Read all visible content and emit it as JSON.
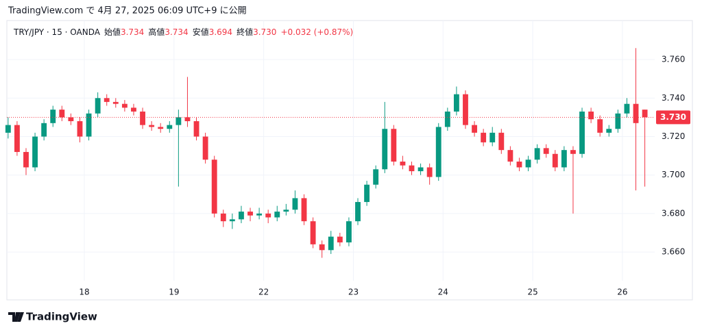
{
  "header": "TradingView.com で 4月 27, 2025 06:09 UTC+9 に公開",
  "logo": "TradingView",
  "chart_data": {
    "type": "candlestick",
    "symbol": "TRY/JPY · 15 · OANDA",
    "legend_items": [
      {
        "label": "始値",
        "value": "3.734"
      },
      {
        "label": "高値",
        "value": "3.734"
      },
      {
        "label": "安値",
        "value": "3.694"
      },
      {
        "label": "終値",
        "value": "3.730"
      }
    ],
    "change": "+0.032 (+0.87%)",
    "up_color": "#089981",
    "down_color": "#f23645",
    "grid": true,
    "xlim": [
      0.136,
      7.36
    ],
    "xticks": [
      {
        "value": 1,
        "label": "18"
      },
      {
        "value": 2,
        "label": "19"
      },
      {
        "value": 3,
        "label": "22"
      },
      {
        "value": 4,
        "label": "23"
      },
      {
        "value": 5,
        "label": "24"
      },
      {
        "value": 6,
        "label": "25"
      },
      {
        "value": 7,
        "label": "26"
      }
    ],
    "ylim": [
      3.6451,
      3.7803
    ],
    "yticks": [
      {
        "value": 3.66,
        "label": "3.660"
      },
      {
        "value": 3.68,
        "label": "3.680"
      },
      {
        "value": 3.7,
        "label": "3.700"
      },
      {
        "value": 3.72,
        "label": "3.720"
      },
      {
        "value": 3.74,
        "label": "3.740"
      },
      {
        "value": 3.76,
        "label": "3.760"
      }
    ],
    "last_price": {
      "value": 3.73,
      "label": "3.730"
    },
    "x": [
      0.15,
      0.25,
      0.35,
      0.45,
      0.55,
      0.65,
      0.75,
      0.85,
      0.95,
      1.05,
      1.15,
      1.25,
      1.35,
      1.45,
      1.55,
      1.65,
      1.75,
      1.85,
      1.95,
      2.05,
      2.15,
      2.25,
      2.35,
      2.45,
      2.55,
      2.65,
      2.75,
      2.85,
      2.95,
      3.05,
      3.15,
      3.25,
      3.35,
      3.45,
      3.55,
      3.65,
      3.75,
      3.85,
      3.95,
      4.05,
      4.15,
      4.25,
      4.35,
      4.45,
      4.55,
      4.65,
      4.75,
      4.85,
      4.95,
      5.05,
      5.15,
      5.25,
      5.35,
      5.45,
      5.55,
      5.65,
      5.75,
      5.85,
      5.95,
      6.05,
      6.15,
      6.25,
      6.35,
      6.45,
      6.55,
      6.65,
      6.75,
      6.85,
      6.95,
      7.05,
      7.15,
      7.25
    ],
    "open": [
      3.722,
      3.726,
      3.712,
      3.704,
      3.72,
      3.727,
      3.734,
      3.73,
      3.728,
      3.72,
      3.732,
      3.74,
      3.738,
      3.737,
      3.735,
      3.733,
      3.726,
      3.725,
      3.724,
      3.726,
      3.73,
      3.728,
      3.72,
      3.708,
      3.68,
      3.676,
      3.677,
      3.681,
      3.679,
      3.68,
      3.678,
      3.681,
      3.682,
      3.688,
      3.676,
      3.664,
      3.661,
      3.668,
      3.665,
      3.676,
      3.686,
      3.695,
      3.703,
      3.724,
      3.707,
      3.705,
      3.702,
      3.704,
      3.699,
      3.725,
      3.733,
      3.742,
      3.726,
      3.722,
      3.717,
      3.722,
      3.713,
      3.707,
      3.704,
      3.708,
      3.714,
      3.711,
      3.704,
      3.713,
      3.711,
      3.733,
      3.729,
      3.722,
      3.724,
      3.732,
      3.737,
      3.734
    ],
    "high": [
      3.73,
      3.728,
      3.714,
      3.722,
      3.729,
      3.736,
      3.736,
      3.732,
      3.73,
      3.734,
      3.743,
      3.742,
      3.74,
      3.739,
      3.737,
      3.735,
      3.728,
      3.727,
      3.728,
      3.734,
      3.751,
      3.73,
      3.722,
      3.71,
      3.682,
      3.68,
      3.684,
      3.683,
      3.683,
      3.682,
      3.684,
      3.685,
      3.692,
      3.69,
      3.678,
      3.666,
      3.671,
      3.67,
      3.678,
      3.688,
      3.697,
      3.705,
      3.738,
      3.726,
      3.71,
      3.707,
      3.706,
      3.706,
      3.727,
      3.735,
      3.746,
      3.744,
      3.728,
      3.724,
      3.725,
      3.724,
      3.715,
      3.709,
      3.71,
      3.716,
      3.716,
      3.713,
      3.715,
      3.715,
      3.735,
      3.735,
      3.731,
      3.726,
      3.734,
      3.74,
      3.766,
      3.734
    ],
    "low": [
      3.719,
      3.71,
      3.7,
      3.702,
      3.718,
      3.725,
      3.728,
      3.726,
      3.717,
      3.718,
      3.73,
      3.736,
      3.735,
      3.733,
      3.731,
      3.724,
      3.723,
      3.722,
      3.722,
      3.694,
      3.725,
      3.718,
      3.706,
      3.678,
      3.673,
      3.672,
      3.675,
      3.676,
      3.677,
      3.675,
      3.676,
      3.679,
      3.68,
      3.674,
      3.662,
      3.657,
      3.659,
      3.663,
      3.663,
      3.674,
      3.684,
      3.693,
      3.701,
      3.705,
      3.703,
      3.7,
      3.7,
      3.695,
      3.697,
      3.723,
      3.731,
      3.724,
      3.72,
      3.715,
      3.715,
      3.711,
      3.705,
      3.702,
      3.702,
      3.706,
      3.709,
      3.702,
      3.702,
      3.68,
      3.709,
      3.727,
      3.72,
      3.72,
      3.722,
      3.73,
      3.692,
      3.694
    ],
    "close": [
      3.726,
      3.712,
      3.704,
      3.72,
      3.727,
      3.734,
      3.73,
      3.728,
      3.72,
      3.732,
      3.74,
      3.738,
      3.737,
      3.735,
      3.733,
      3.726,
      3.725,
      3.724,
      3.726,
      3.73,
      3.728,
      3.72,
      3.708,
      3.68,
      3.676,
      3.677,
      3.681,
      3.679,
      3.68,
      3.678,
      3.681,
      3.682,
      3.688,
      3.676,
      3.664,
      3.661,
      3.668,
      3.665,
      3.676,
      3.686,
      3.695,
      3.703,
      3.724,
      3.707,
      3.705,
      3.702,
      3.704,
      3.699,
      3.725,
      3.733,
      3.742,
      3.726,
      3.722,
      3.717,
      3.722,
      3.713,
      3.707,
      3.704,
      3.708,
      3.714,
      3.711,
      3.704,
      3.713,
      3.711,
      3.733,
      3.729,
      3.722,
      3.724,
      3.732,
      3.737,
      3.727,
      3.73
    ]
  }
}
